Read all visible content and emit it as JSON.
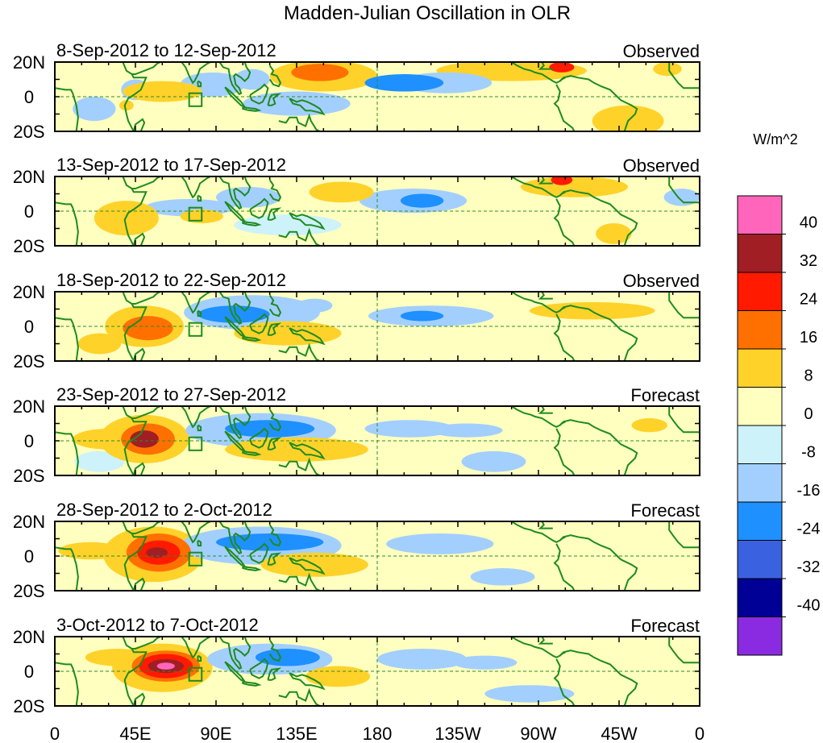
{
  "chart_data": {
    "type": "heatmap",
    "title": "Madden-Julian Oscillation in OLR",
    "units": "W/m^2",
    "x_ticks": [
      "0",
      "45E",
      "90E",
      "135E",
      "180",
      "135W",
      "90W",
      "45W",
      "0"
    ],
    "y_ticks": [
      "20N",
      "0",
      "20S"
    ],
    "xlim_deg": [
      0,
      360
    ],
    "ylim_deg": [
      -20,
      20
    ],
    "colorbar": {
      "levels": [
        "40",
        "32",
        "24",
        "16",
        "8",
        "0",
        "-8",
        "-16",
        "-24",
        "-32",
        "-40"
      ],
      "colors": [
        "#ff66bb",
        "#a01e24",
        "#ff1a00",
        "#ff7000",
        "#ffd22a",
        "#ffffc0",
        "#cdf2fa",
        "#a3cfff",
        "#1e90ff",
        "#3a62e0",
        "#000096",
        "#8a2be2"
      ]
    },
    "panels": [
      {
        "date_range": "8-Sep-2012 to 12-Sep-2012",
        "kind": "Observed",
        "anomalies": [
          {
            "lon": 148,
            "lat": 14,
            "rx": 16,
            "ry": 5,
            "value": 18
          },
          {
            "lon": 150,
            "lat": 12,
            "rx": 30,
            "ry": 9,
            "value": 10
          },
          {
            "lon": 255,
            "lat": 15,
            "rx": 42,
            "ry": 6,
            "value": 9
          },
          {
            "lon": 283,
            "lat": 17,
            "rx": 7,
            "ry": 3,
            "value": 26
          },
          {
            "lon": 320,
            "lat": -14,
            "rx": 20,
            "ry": 9,
            "value": 10
          },
          {
            "lon": 88,
            "lat": 7,
            "rx": 18,
            "ry": 7,
            "value": -10
          },
          {
            "lon": 110,
            "lat": 10,
            "rx": 10,
            "ry": 6,
            "value": -10
          },
          {
            "lon": 195,
            "lat": 8,
            "rx": 22,
            "ry": 5,
            "value": -17
          },
          {
            "lon": 218,
            "lat": 8,
            "rx": 26,
            "ry": 6,
            "value": -9
          },
          {
            "lon": 135,
            "lat": -4,
            "rx": 30,
            "ry": 7,
            "value": -9
          },
          {
            "lon": 22,
            "lat": -7,
            "rx": 12,
            "ry": 7,
            "value": -9
          },
          {
            "lon": 45,
            "lat": 4,
            "rx": 8,
            "ry": 6,
            "value": -9
          },
          {
            "lon": 60,
            "lat": 3,
            "rx": 22,
            "ry": 6,
            "value": 10
          },
          {
            "lon": 40,
            "lat": -5,
            "rx": 4,
            "ry": 3,
            "value": 10
          },
          {
            "lon": 342,
            "lat": 16,
            "rx": 8,
            "ry": 4,
            "value": 10
          }
        ]
      },
      {
        "date_range": "13-Sep-2012 to 17-Sep-2012",
        "kind": "Observed",
        "anomalies": [
          {
            "lon": 160,
            "lat": 11,
            "rx": 18,
            "ry": 6,
            "value": 10
          },
          {
            "lon": 108,
            "lat": 8,
            "rx": 18,
            "ry": 6,
            "value": -10
          },
          {
            "lon": 205,
            "lat": 6,
            "rx": 12,
            "ry": 4,
            "value": -17
          },
          {
            "lon": 200,
            "lat": 6,
            "rx": 30,
            "ry": 7,
            "value": -9
          },
          {
            "lon": 75,
            "lat": 2,
            "rx": 25,
            "ry": 5,
            "value": -9
          },
          {
            "lon": 82,
            "lat": -3,
            "rx": 12,
            "ry": 4,
            "value": 10
          },
          {
            "lon": 40,
            "lat": -4,
            "rx": 18,
            "ry": 10,
            "value": 10
          },
          {
            "lon": 290,
            "lat": 14,
            "rx": 30,
            "ry": 6,
            "value": 10
          },
          {
            "lon": 283,
            "lat": 18,
            "rx": 6,
            "ry": 3,
            "value": 26
          },
          {
            "lon": 312,
            "lat": -13,
            "rx": 10,
            "ry": 6,
            "value": 10
          },
          {
            "lon": 130,
            "lat": -8,
            "rx": 30,
            "ry": 6,
            "value": -8
          },
          {
            "lon": 350,
            "lat": 8,
            "rx": 10,
            "ry": 5,
            "value": -9
          }
        ]
      },
      {
        "date_range": "18-Sep-2012 to 22-Sep-2012",
        "kind": "Observed",
        "anomalies": [
          {
            "lon": 52,
            "lat": -1,
            "rx": 14,
            "ry": 7,
            "value": 18
          },
          {
            "lon": 50,
            "lat": 0,
            "rx": 22,
            "ry": 12,
            "value": 10
          },
          {
            "lon": 100,
            "lat": 7,
            "rx": 20,
            "ry": 5,
            "value": -20
          },
          {
            "lon": 110,
            "lat": 8,
            "rx": 38,
            "ry": 10,
            "value": -10
          },
          {
            "lon": 130,
            "lat": -4,
            "rx": 30,
            "ry": 7,
            "value": 10
          },
          {
            "lon": 205,
            "lat": 6,
            "rx": 12,
            "ry": 3,
            "value": -17
          },
          {
            "lon": 210,
            "lat": 6,
            "rx": 35,
            "ry": 6,
            "value": -9
          },
          {
            "lon": 145,
            "lat": 12,
            "rx": 10,
            "ry": 4,
            "value": -10
          },
          {
            "lon": 300,
            "lat": 9,
            "rx": 35,
            "ry": 5,
            "value": 10
          },
          {
            "lon": 25,
            "lat": -10,
            "rx": 12,
            "ry": 6,
            "value": 10
          }
        ]
      },
      {
        "date_range": "23-Sep-2012 to 27-Sep-2012",
        "kind": "Forecast",
        "anomalies": [
          {
            "lon": 50,
            "lat": 1,
            "rx": 8,
            "ry": 5,
            "value": 34
          },
          {
            "lon": 52,
            "lat": 1,
            "rx": 15,
            "ry": 9,
            "value": 18
          },
          {
            "lon": 50,
            "lat": 1,
            "rx": 25,
            "ry": 14,
            "value": 10
          },
          {
            "lon": 30,
            "lat": 1,
            "rx": 20,
            "ry": 6,
            "value": 10
          },
          {
            "lon": 120,
            "lat": 7,
            "rx": 25,
            "ry": 5,
            "value": -20
          },
          {
            "lon": 115,
            "lat": 6,
            "rx": 42,
            "ry": 10,
            "value": -10
          },
          {
            "lon": 135,
            "lat": -5,
            "rx": 40,
            "ry": 7,
            "value": 10
          },
          {
            "lon": 198,
            "lat": 7,
            "rx": 25,
            "ry": 5,
            "value": -10
          },
          {
            "lon": 230,
            "lat": 6,
            "rx": 20,
            "ry": 4,
            "value": -9
          },
          {
            "lon": 245,
            "lat": -12,
            "rx": 18,
            "ry": 6,
            "value": -9
          },
          {
            "lon": 332,
            "lat": 9,
            "rx": 10,
            "ry": 4,
            "value": 10
          },
          {
            "lon": 25,
            "lat": -12,
            "rx": 14,
            "ry": 6,
            "value": -8
          }
        ]
      },
      {
        "date_range": "28-Sep-2012 to 2-Oct-2012",
        "kind": "Forecast",
        "anomalies": [
          {
            "lon": 57,
            "lat": 2,
            "rx": 6,
            "ry": 3,
            "value": 36
          },
          {
            "lon": 58,
            "lat": 2,
            "rx": 12,
            "ry": 7,
            "value": 26
          },
          {
            "lon": 58,
            "lat": 2,
            "rx": 18,
            "ry": 11,
            "value": 18
          },
          {
            "lon": 55,
            "lat": 1,
            "rx": 28,
            "ry": 16,
            "value": 10
          },
          {
            "lon": 120,
            "lat": 8,
            "rx": 30,
            "ry": 5,
            "value": -20
          },
          {
            "lon": 115,
            "lat": 6,
            "rx": 45,
            "ry": 11,
            "value": -10
          },
          {
            "lon": 145,
            "lat": -5,
            "rx": 30,
            "ry": 7,
            "value": 10
          },
          {
            "lon": 215,
            "lat": 7,
            "rx": 30,
            "ry": 6,
            "value": -10
          },
          {
            "lon": 250,
            "lat": -12,
            "rx": 18,
            "ry": 5,
            "value": -9
          },
          {
            "lon": 20,
            "lat": 3,
            "rx": 18,
            "ry": 5,
            "value": 10
          }
        ]
      },
      {
        "date_range": "3-Oct-2012 to 7-Oct-2012",
        "kind": "Forecast",
        "anomalies": [
          {
            "lon": 62,
            "lat": 3,
            "rx": 5,
            "ry": 2,
            "value": 45
          },
          {
            "lon": 62,
            "lat": 3,
            "rx": 10,
            "ry": 4,
            "value": 36
          },
          {
            "lon": 62,
            "lat": 3,
            "rx": 15,
            "ry": 7,
            "value": 26
          },
          {
            "lon": 62,
            "lat": 3,
            "rx": 19,
            "ry": 9,
            "value": 18
          },
          {
            "lon": 60,
            "lat": 2,
            "rx": 28,
            "ry": 14,
            "value": 10
          },
          {
            "lon": 130,
            "lat": 8,
            "rx": 18,
            "ry": 5,
            "value": -20
          },
          {
            "lon": 120,
            "lat": 7,
            "rx": 35,
            "ry": 9,
            "value": -10
          },
          {
            "lon": 158,
            "lat": -3,
            "rx": 18,
            "ry": 6,
            "value": 10
          },
          {
            "lon": 205,
            "lat": 7,
            "rx": 25,
            "ry": 6,
            "value": -9
          },
          {
            "lon": 240,
            "lat": 5,
            "rx": 18,
            "ry": 4,
            "value": -9
          },
          {
            "lon": 35,
            "lat": 8,
            "rx": 18,
            "ry": 5,
            "value": 10
          },
          {
            "lon": 265,
            "lat": -13,
            "rx": 25,
            "ry": 5,
            "value": -9
          }
        ]
      }
    ]
  }
}
